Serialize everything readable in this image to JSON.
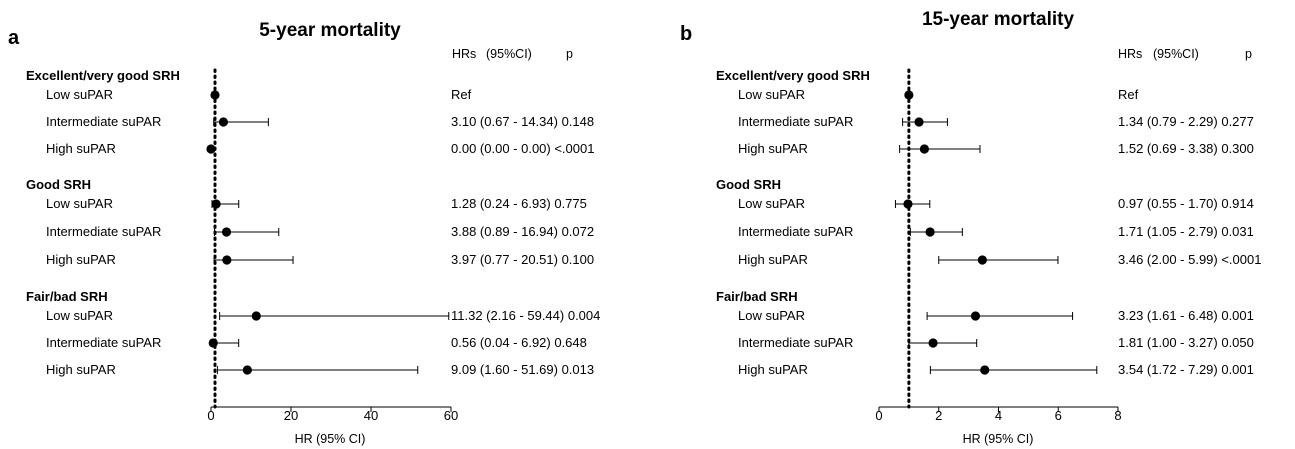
{
  "chart_data": [
    {
      "type": "forest",
      "panel": "a",
      "title": "5-year mortality",
      "header": {
        "hr": "HRs",
        "ci": "(95%CI)",
        "p": "p"
      },
      "xlabel": "HR (95% CI)",
      "xlim": [
        0,
        60
      ],
      "xticks": [
        "0",
        "20",
        "40",
        "60"
      ],
      "xtick_values": [
        0,
        20,
        40,
        60
      ],
      "ref_line": 1,
      "groups": [
        {
          "name": "Excellent/very good SRH",
          "rows": [
            {
              "label": "Low suPAR",
              "hr": 1.0,
              "lo": 1.0,
              "hi": 1.0,
              "text": "Ref"
            },
            {
              "label": "Intermediate suPAR",
              "hr": 3.1,
              "lo": 0.67,
              "hi": 14.34,
              "text": "3.10 (0.67 - 14.34) 0.148"
            },
            {
              "label": "High suPAR",
              "hr": 0.0,
              "lo": 0.0,
              "hi": 0.0,
              "text": "0.00 (0.00 - 0.00) <.0001"
            }
          ]
        },
        {
          "name": "Good SRH",
          "rows": [
            {
              "label": "Low suPAR",
              "hr": 1.28,
              "lo": 0.24,
              "hi": 6.93,
              "text": "1.28 (0.24 - 6.93) 0.775"
            },
            {
              "label": "Intermediate suPAR",
              "hr": 3.88,
              "lo": 0.89,
              "hi": 16.94,
              "text": "3.88 (0.89 - 16.94) 0.072"
            },
            {
              "label": "High suPAR",
              "hr": 3.97,
              "lo": 0.77,
              "hi": 20.51,
              "text": "3.97 (0.77 - 20.51) 0.100"
            }
          ]
        },
        {
          "name": "Fair/bad SRH",
          "rows": [
            {
              "label": "Low suPAR",
              "hr": 11.32,
              "lo": 2.16,
              "hi": 59.44,
              "text": "11.32 (2.16 - 59.44) 0.004"
            },
            {
              "label": "Intermediate suPAR",
              "hr": 0.56,
              "lo": 0.04,
              "hi": 6.92,
              "text": "0.56 (0.04 - 6.92) 0.648"
            },
            {
              "label": "High suPAR",
              "hr": 9.09,
              "lo": 1.6,
              "hi": 51.69,
              "text": "9.09 (1.60 - 51.69) 0.013"
            }
          ]
        }
      ]
    },
    {
      "type": "forest",
      "panel": "b",
      "title": "15-year mortality",
      "header": {
        "hr": "HRs",
        "ci": "(95%CI)",
        "p": "p"
      },
      "xlabel": "HR (95% CI)",
      "xlim": [
        0,
        8
      ],
      "xticks": [
        "0",
        "2",
        "4",
        "6",
        "8"
      ],
      "xtick_values": [
        0,
        2,
        4,
        6,
        8
      ],
      "ref_line": 1,
      "groups": [
        {
          "name": "Excellent/very good SRH",
          "rows": [
            {
              "label": "Low suPAR",
              "hr": 1.0,
              "lo": 1.0,
              "hi": 1.0,
              "text": "Ref"
            },
            {
              "label": "Intermediate suPAR",
              "hr": 1.34,
              "lo": 0.79,
              "hi": 2.29,
              "text": "1.34 (0.79 - 2.29) 0.277"
            },
            {
              "label": "High suPAR",
              "hr": 1.52,
              "lo": 0.69,
              "hi": 3.38,
              "text": "1.52 (0.69 - 3.38) 0.300"
            }
          ]
        },
        {
          "name": "Good SRH",
          "rows": [
            {
              "label": "Low suPAR",
              "hr": 0.97,
              "lo": 0.55,
              "hi": 1.7,
              "text": "0.97 (0.55 - 1.70) 0.914"
            },
            {
              "label": "Intermediate suPAR",
              "hr": 1.71,
              "lo": 1.05,
              "hi": 2.79,
              "text": "1.71 (1.05 - 2.79) 0.031"
            },
            {
              "label": "High suPAR",
              "hr": 3.46,
              "lo": 2.0,
              "hi": 5.99,
              "text": "3.46 (2.00 - 5.99) <.0001"
            }
          ]
        },
        {
          "name": "Fair/bad SRH",
          "rows": [
            {
              "label": "Low suPAR",
              "hr": 3.23,
              "lo": 1.61,
              "hi": 6.48,
              "text": "3.23 (1.61 - 6.48) 0.001"
            },
            {
              "label": "Intermediate suPAR",
              "hr": 1.81,
              "lo": 1.0,
              "hi": 3.27,
              "text": "1.81 (1.00 - 3.27) 0.050"
            },
            {
              "label": "High suPAR",
              "hr": 3.54,
              "lo": 1.72,
              "hi": 7.29,
              "text": "3.54 (1.72 - 7.29) 0.001"
            }
          ]
        }
      ]
    }
  ]
}
